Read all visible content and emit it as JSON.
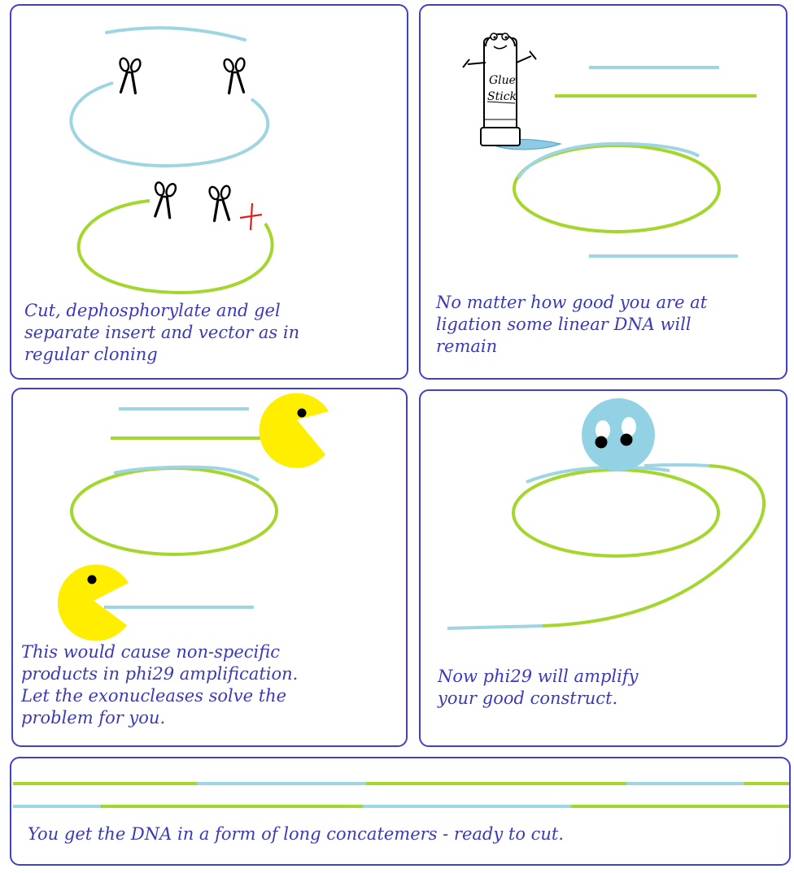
{
  "colors": {
    "border": "#4040c8",
    "text": "#3a3ab8",
    "insert": "#9dd5e3",
    "vector": "#a4d62d",
    "pacman": "#ffee00",
    "blob": "#92d2e4",
    "cut_mark": "#e02020"
  },
  "panels": [
    {
      "icons": [
        "scissors-icon",
        "scissors-icon",
        "scissors-icon",
        "scissors-icon",
        "red-cross-mark-icon"
      ],
      "caption": [
        "Cut, dephosphorylate and gel",
        "separate insert and vector as in",
        "regular cloning"
      ]
    },
    {
      "icons": [
        "glue-stick-cartoon-icon"
      ],
      "caption": [
        "No matter how good you are at",
        "ligation some linear DNA will",
        "remain"
      ]
    },
    {
      "icons": [
        "pacman-exonuclease-icon",
        "pacman-exonuclease-icon"
      ],
      "caption": [
        "This would cause non-specific",
        "products in phi29 amplification.",
        "Let the exonucleases solve the",
        "problem for you."
      ]
    },
    {
      "icons": [
        "phi29-polymerase-blob-icon"
      ],
      "caption": [
        "Now phi29 will amplify",
        "your good construct."
      ]
    },
    {
      "icons": [],
      "caption": [
        "You get the DNA  in a form of long concatemers - ready to cut."
      ]
    }
  ]
}
